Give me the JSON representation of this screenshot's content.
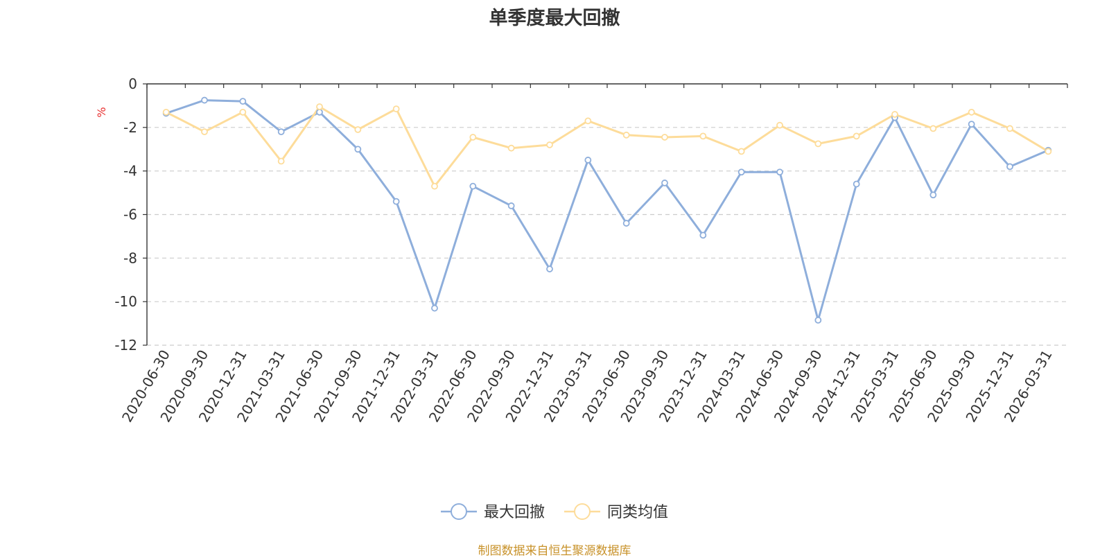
{
  "chart_data": {
    "type": "line",
    "title": "单季度最大回撤",
    "ylabel": "%",
    "xlabel": "",
    "ylim": [
      -12,
      0
    ],
    "yticks": [
      0,
      -2,
      -4,
      -6,
      -8,
      -10,
      -12
    ],
    "grid": true,
    "legend_position": "bottom-center",
    "categories": [
      "2020-06-30",
      "2020-09-30",
      "2020-12-31",
      "2021-03-31",
      "2021-06-30",
      "2021-09-30",
      "2021-12-31",
      "2022-03-31",
      "2022-06-30",
      "2022-09-30",
      "2022-12-31",
      "2023-03-31",
      "2023-06-30",
      "2023-09-30",
      "2023-12-31",
      "2024-03-31",
      "2024-06-30",
      "2024-09-30",
      "2024-12-31",
      "2025-03-31",
      "2025-06-30",
      "2025-09-30",
      "2025-12-31",
      "2026-03-31"
    ],
    "series": [
      {
        "name": "最大回撤",
        "color": "#8eaedb",
        "values": [
          -1.35,
          -0.75,
          -0.8,
          -2.2,
          -1.3,
          -3.0,
          -5.4,
          -10.3,
          -4.7,
          -5.6,
          -8.5,
          -3.5,
          -6.4,
          -4.55,
          -6.95,
          -4.05,
          -4.05,
          -10.85,
          -4.6,
          -1.55,
          -5.1,
          -1.85,
          -3.8,
          -3.05
        ]
      },
      {
        "name": "同类均值",
        "color": "#fddc9a",
        "values": [
          -1.3,
          -2.2,
          -1.3,
          -3.55,
          -1.05,
          -2.1,
          -1.15,
          -4.7,
          -2.45,
          -2.95,
          -2.8,
          -1.7,
          -2.35,
          -2.45,
          -2.4,
          -3.1,
          -1.9,
          -2.75,
          -2.4,
          -1.4,
          -2.05,
          -1.3,
          -2.05,
          -3.1
        ]
      }
    ]
  },
  "source_note": "制图数据来自恒生聚源数据库",
  "colors": {
    "axis": "#333333",
    "grid": "#cccccc",
    "unit_label": "#e83030",
    "source_note": "#c8922a"
  }
}
